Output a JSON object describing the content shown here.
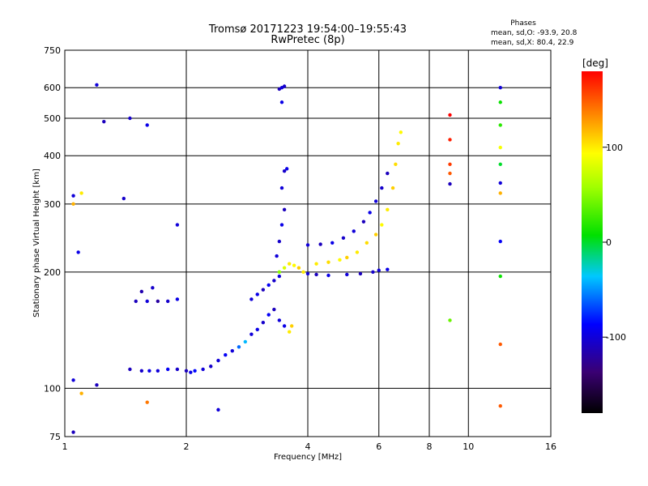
{
  "chart_data": {
    "type": "scatter",
    "title": "Tromsø 20171223 19:54:00–19:55:43",
    "subtitle": "RwPretec (8p)",
    "xlabel": "Frequency [MHz]",
    "ylabel": "Stationary phase Virtual Height [km]",
    "xscale": "log",
    "yscale": "log",
    "xlim": [
      1,
      16
    ],
    "ylim": [
      75,
      750
    ],
    "xticks": [
      1,
      2,
      4,
      6,
      8,
      10,
      16
    ],
    "yticks": [
      75,
      100,
      200,
      300,
      400,
      500,
      600,
      750
    ],
    "grid": true,
    "stats": {
      "heading": "Phases",
      "line1": "mean, sd,O: -93.9, 20.8",
      "line2": "mean, sd,X:  80.4, 22.9"
    },
    "colorbar": {
      "label": "[deg]",
      "range": [
        -180,
        180
      ],
      "ticks": [
        100,
        0,
        -100
      ],
      "placement": "right"
    },
    "series": [
      {
        "values": [
          [
            1.45,
            112,
            -110
          ],
          [
            1.55,
            111,
            -105
          ],
          [
            1.62,
            111,
            -95
          ],
          [
            1.7,
            111,
            -100
          ],
          [
            1.8,
            112,
            -90
          ],
          [
            1.9,
            112,
            -105
          ],
          [
            2.0,
            111,
            -110
          ],
          [
            2.05,
            110,
            -95
          ],
          [
            2.1,
            111,
            -85
          ],
          [
            2.2,
            112,
            -100
          ],
          [
            2.3,
            114,
            -105
          ],
          [
            2.4,
            118,
            -100
          ],
          [
            2.5,
            122,
            -90
          ],
          [
            2.6,
            125,
            -100
          ],
          [
            2.7,
            128,
            -60
          ],
          [
            2.8,
            132,
            -40
          ],
          [
            2.9,
            138,
            -100
          ],
          [
            3.0,
            142,
            -95
          ],
          [
            3.1,
            148,
            -105
          ],
          [
            3.2,
            155,
            -90
          ],
          [
            3.3,
            160,
            -110
          ],
          [
            3.4,
            150,
            -100
          ],
          [
            3.5,
            145,
            -95
          ],
          [
            3.6,
            140,
            100
          ],
          [
            3.65,
            145,
            110
          ],
          [
            1.5,
            168,
            -110
          ],
          [
            1.6,
            168,
            -100
          ],
          [
            1.7,
            168,
            -120
          ],
          [
            1.8,
            168,
            -105
          ],
          [
            1.9,
            170,
            -95
          ],
          [
            1.55,
            178,
            -115
          ],
          [
            1.65,
            182,
            -105
          ],
          [
            2.9,
            170,
            -100
          ],
          [
            3.0,
            175,
            -95
          ],
          [
            3.1,
            180,
            -110
          ],
          [
            3.2,
            185,
            -90
          ],
          [
            3.3,
            190,
            -105
          ],
          [
            3.4,
            195,
            -100
          ],
          [
            3.4,
            200,
            50
          ],
          [
            3.5,
            205,
            80
          ],
          [
            3.6,
            210,
            100
          ],
          [
            3.7,
            208,
            95
          ],
          [
            3.8,
            205,
            110
          ],
          [
            3.9,
            200,
            100
          ],
          [
            4.0,
            198,
            -100
          ],
          [
            4.2,
            197,
            -110
          ],
          [
            4.5,
            196,
            -95
          ],
          [
            5.0,
            197,
            -100
          ],
          [
            5.4,
            198,
            -110
          ],
          [
            5.8,
            200,
            -105
          ],
          [
            6.0,
            202,
            -100
          ],
          [
            6.3,
            203,
            -95
          ],
          [
            4.2,
            210,
            100
          ],
          [
            4.5,
            212,
            105
          ],
          [
            4.8,
            215,
            95
          ],
          [
            5.0,
            218,
            110
          ],
          [
            5.3,
            225,
            100
          ],
          [
            5.6,
            238,
            105
          ],
          [
            5.9,
            250,
            110
          ],
          [
            6.1,
            265,
            95
          ],
          [
            6.3,
            290,
            100
          ],
          [
            6.5,
            330,
            110
          ],
          [
            6.6,
            380,
            105
          ],
          [
            6.7,
            430,
            100
          ],
          [
            6.8,
            460,
            95
          ],
          [
            4.0,
            235,
            -100
          ],
          [
            4.3,
            236,
            -110
          ],
          [
            4.6,
            238,
            -95
          ],
          [
            4.9,
            245,
            -105
          ],
          [
            5.2,
            255,
            -100
          ],
          [
            5.5,
            270,
            -110
          ],
          [
            5.7,
            285,
            -95
          ],
          [
            5.9,
            305,
            -100
          ],
          [
            6.1,
            330,
            -105
          ],
          [
            6.3,
            360,
            -110
          ],
          [
            3.35,
            220,
            -100
          ],
          [
            3.4,
            240,
            -105
          ],
          [
            3.45,
            265,
            -95
          ],
          [
            3.5,
            290,
            -110
          ],
          [
            3.45,
            330,
            -100
          ],
          [
            3.5,
            365,
            -105
          ],
          [
            3.55,
            370,
            -95
          ],
          [
            3.4,
            595,
            -110
          ],
          [
            3.45,
            600,
            -100
          ],
          [
            3.5,
            605,
            -105
          ],
          [
            3.45,
            550,
            -95
          ],
          [
            1.2,
            610,
            -100
          ],
          [
            1.25,
            490,
            -110
          ],
          [
            1.45,
            500,
            -105
          ],
          [
            1.6,
            480,
            -95
          ],
          [
            1.05,
            315,
            -100
          ],
          [
            1.4,
            310,
            -105
          ],
          [
            1.9,
            265,
            -100
          ],
          [
            1.08,
            225,
            -95
          ],
          [
            9.0,
            510,
            180
          ],
          [
            9.0,
            440,
            170
          ],
          [
            9.0,
            380,
            160
          ],
          [
            9.0,
            360,
            150
          ],
          [
            9.0,
            338,
            -110
          ],
          [
            9.0,
            150,
            40
          ],
          [
            12.0,
            600,
            -100
          ],
          [
            12.0,
            550,
            10
          ],
          [
            12.0,
            480,
            20
          ],
          [
            12.0,
            420,
            90
          ],
          [
            12.0,
            380,
            0
          ],
          [
            12.0,
            340,
            -100
          ],
          [
            12.0,
            320,
            120
          ],
          [
            12.0,
            240,
            -90
          ],
          [
            12.0,
            195,
            10
          ],
          [
            12.0,
            130,
            150
          ],
          [
            12.0,
            90,
            150
          ],
          [
            1.05,
            105,
            -100
          ],
          [
            1.1,
            97,
            120
          ],
          [
            1.2,
            102,
            -110
          ],
          [
            1.6,
            92,
            140
          ],
          [
            2.4,
            88,
            -100
          ],
          [
            1.05,
            77,
            -110
          ],
          [
            1.05,
            300,
            120
          ],
          [
            1.1,
            320,
            100
          ]
        ]
      }
    ]
  }
}
